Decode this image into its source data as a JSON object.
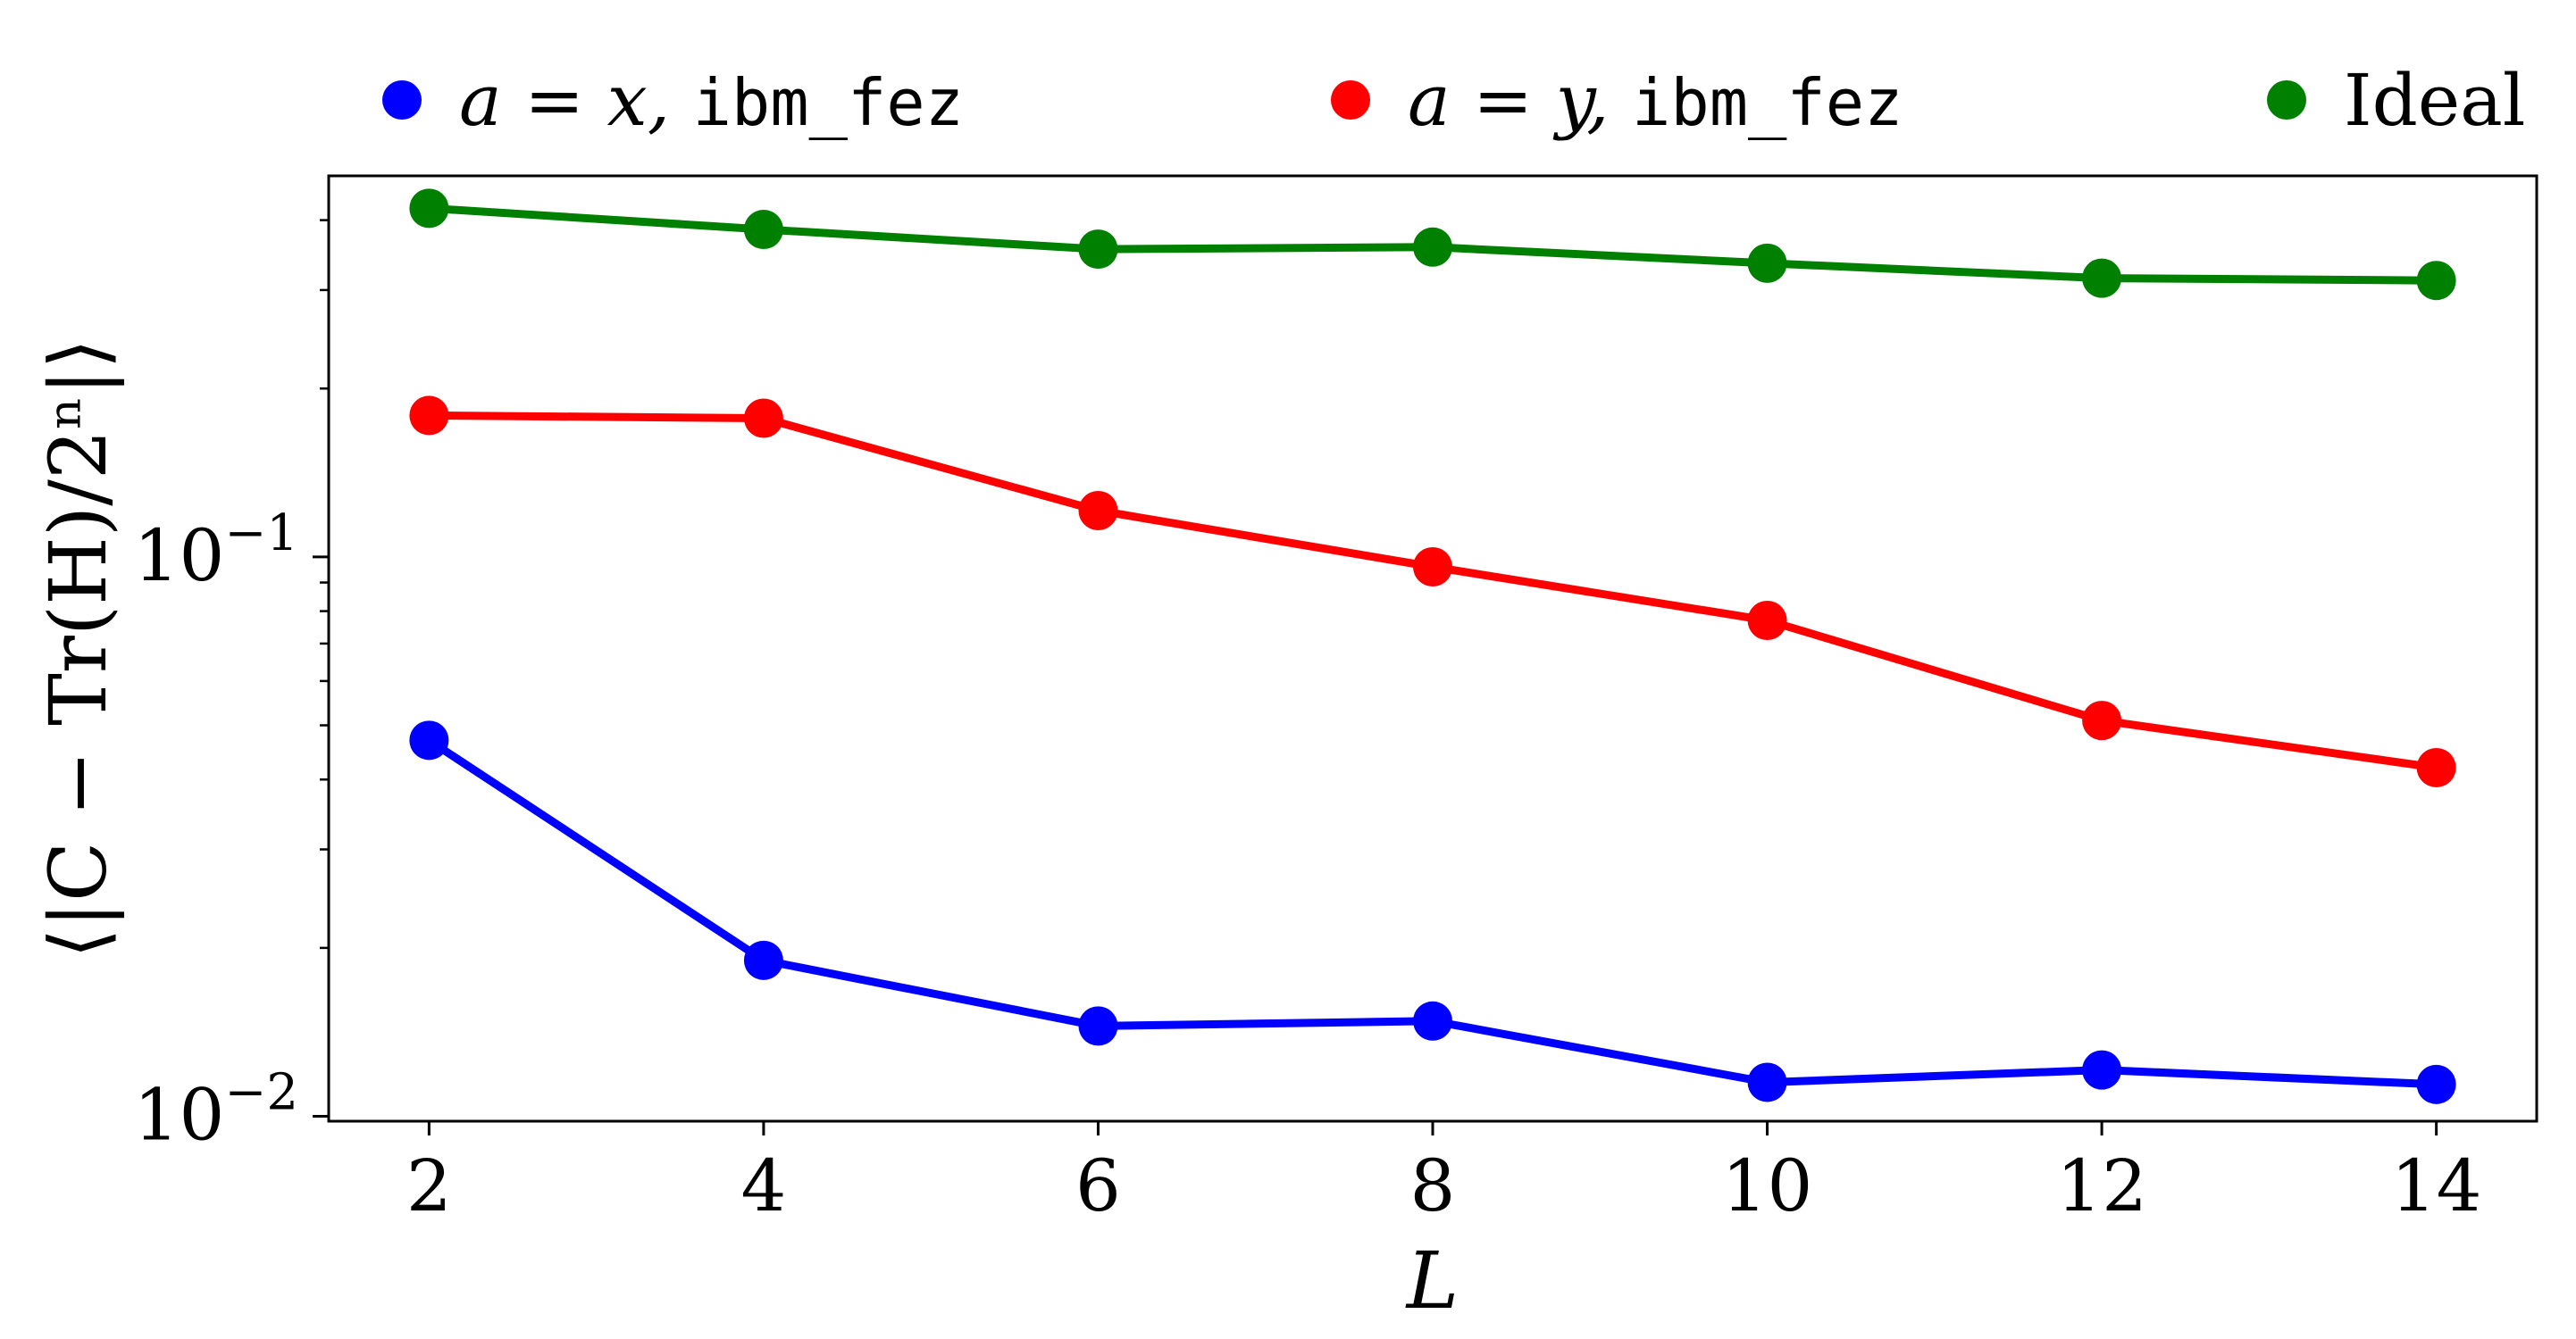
{
  "chart_data": {
    "type": "line",
    "xlabel": "L",
    "ylabel": "⟨|C − Tr(H)/2ⁿ|⟩",
    "yscale": "log",
    "xlim": [
      1.4,
      14.6
    ],
    "ylim": [
      0.0098,
      0.48
    ],
    "x": [
      2,
      4,
      6,
      8,
      10,
      12,
      14
    ],
    "x_ticks": [
      2,
      4,
      6,
      8,
      10,
      12,
      14
    ],
    "y_ticks": [
      {
        "value": 0.1,
        "base": "10",
        "exp": "−1"
      },
      {
        "value": 0.01,
        "base": "10",
        "exp": "−2"
      }
    ],
    "grid": false,
    "legend_position": "top, outside plot",
    "series": [
      {
        "key": "x",
        "name": "a = x, ibm_fez",
        "legend_math": "a = x,",
        "legend_code": "ibm_fez",
        "color": "#0000ff",
        "values": [
          0.047,
          0.019,
          0.0145,
          0.0148,
          0.0115,
          0.0121,
          0.0114
        ]
      },
      {
        "key": "y",
        "name": "a = y, ibm_fez",
        "legend_math": "a = y,",
        "legend_code": "ibm_fez",
        "color": "#ff0000",
        "values": [
          0.179,
          0.177,
          0.121,
          0.096,
          0.077,
          0.051,
          0.042
        ]
      },
      {
        "key": "ideal",
        "name": "Ideal",
        "legend_math": "",
        "legend_code": "",
        "legend_text": "Ideal",
        "color": "#008000",
        "values": [
          0.42,
          0.385,
          0.355,
          0.358,
          0.335,
          0.315,
          0.312
        ]
      }
    ]
  }
}
